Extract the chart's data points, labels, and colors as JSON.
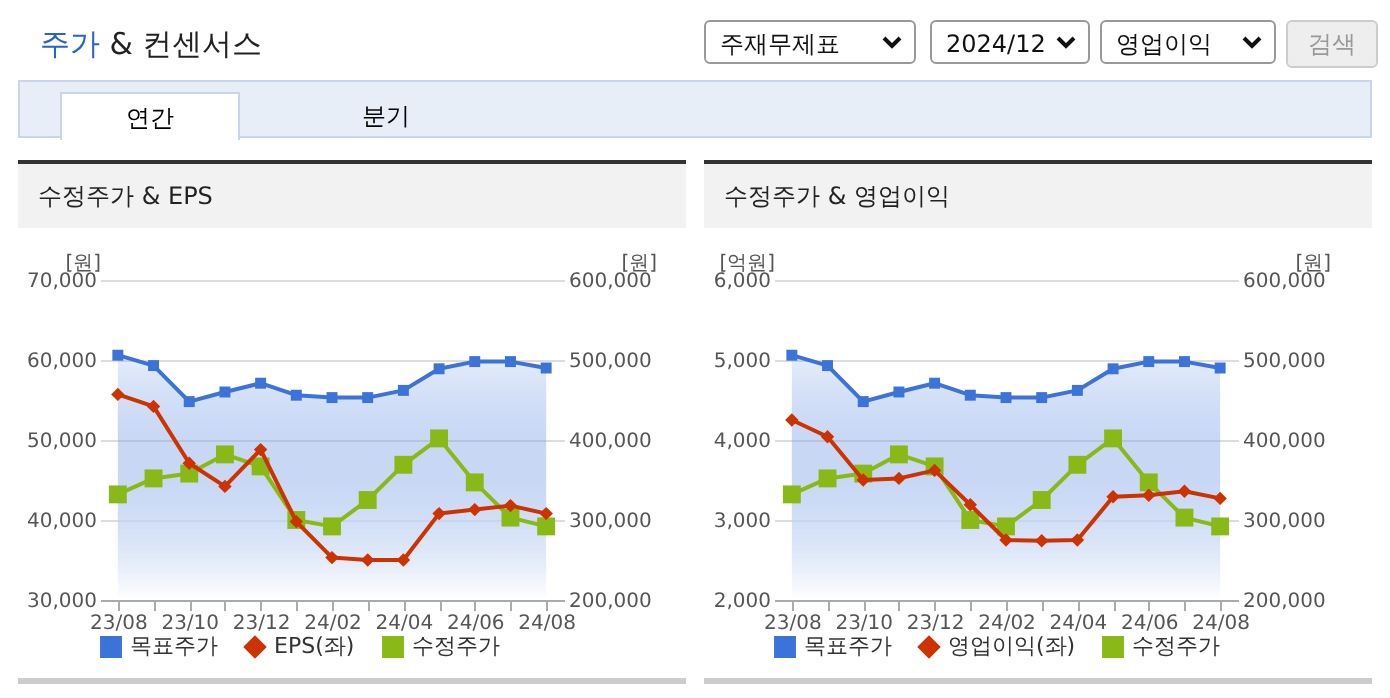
{
  "chart_data": [
    {
      "type": "other",
      "title": "주가 & 컨센서스",
      "annotations": [
        "주재무제표",
        "2024/12",
        "영업이익",
        "검색",
        "연간",
        "분기"
      ]
    },
    {
      "type": "line",
      "title": "수정주가 & EPS",
      "categories": [
        "23/08",
        null,
        "23/10",
        null,
        "23/12",
        null,
        "24/02",
        null,
        "24/04",
        null,
        "24/06",
        null,
        "24/08"
      ],
      "ylabel": "[원]",
      "y2label": "[원]",
      "ylim": [
        30000,
        70000
      ],
      "yticks": [
        {
          "value": 30000,
          "label": "30,000"
        },
        {
          "value": 40000,
          "label": "40,000"
        },
        {
          "value": 50000,
          "label": "50,000"
        },
        {
          "value": 60000,
          "label": "60,000"
        },
        {
          "value": 70000,
          "label": "70,000"
        }
      ],
      "y2lim": [
        200000,
        600000
      ],
      "y2ticks": [
        {
          "value": 200000,
          "label": "200,000"
        },
        {
          "value": 300000,
          "label": "300,000"
        },
        {
          "value": 400000,
          "label": "400,000"
        },
        {
          "value": 500000,
          "label": "500,000"
        },
        {
          "value": 600000,
          "label": "600,000"
        }
      ],
      "grid": "y",
      "legend": "bottom",
      "series": [
        {
          "name": "목표주가",
          "type": "area",
          "axis": "y2",
          "color": "#3b73d9",
          "values": [
            506000,
            493000,
            448000,
            460000,
            471000,
            456000,
            453000,
            453000,
            462000,
            489000,
            498000,
            498000,
            490000
          ]
        },
        {
          "name": "EPS(좌)",
          "type": "line",
          "color": "#cc3300",
          "marker": "diamond",
          "values": [
            55700,
            54200,
            47100,
            44200,
            48800,
            39800,
            35300,
            35000,
            35000,
            40800,
            41300,
            41800,
            40800
          ]
        },
        {
          "name": "수정주가",
          "type": "line",
          "axis": "y2",
          "color": "#88b917",
          "marker": "square",
          "values": [
            332000,
            352000,
            358000,
            382000,
            367000,
            300000,
            292000,
            325000,
            369000,
            402000,
            347000,
            303000,
            292000
          ]
        }
      ]
    },
    {
      "type": "line",
      "title": "수정주가 & 영업이익",
      "categories": [
        "23/08",
        null,
        "23/10",
        null,
        "23/12",
        null,
        "24/02",
        null,
        "24/04",
        null,
        "24/06",
        null,
        "24/08"
      ],
      "ylabel": "[억원]",
      "y2label": "[원]",
      "ylim": [
        2000,
        6000
      ],
      "yticks": [
        {
          "value": 2000,
          "label": "2,000"
        },
        {
          "value": 3000,
          "label": "3,000"
        },
        {
          "value": 4000,
          "label": "4,000"
        },
        {
          "value": 5000,
          "label": "5,000"
        },
        {
          "value": 6000,
          "label": "6,000"
        }
      ],
      "y2lim": [
        200000,
        600000
      ],
      "y2ticks": [
        {
          "value": 200000,
          "label": "200,000"
        },
        {
          "value": 300000,
          "label": "300,000"
        },
        {
          "value": 400000,
          "label": "400,000"
        },
        {
          "value": 500000,
          "label": "500,000"
        },
        {
          "value": 600000,
          "label": "600,000"
        }
      ],
      "grid": "y",
      "legend": "bottom",
      "series": [
        {
          "name": "목표주가",
          "type": "area",
          "axis": "y2",
          "color": "#3b73d9",
          "values": [
            506000,
            493000,
            448000,
            460000,
            471000,
            456000,
            453000,
            453000,
            462000,
            489000,
            498000,
            498000,
            490000
          ]
        },
        {
          "name": "영업이익(좌)",
          "type": "line",
          "color": "#cc3300",
          "marker": "diamond",
          "values": [
            4250,
            4040,
            3500,
            3520,
            3620,
            3190,
            2750,
            2740,
            2750,
            3290,
            3310,
            3360,
            3270
          ]
        },
        {
          "name": "수정주가",
          "type": "line",
          "axis": "y2",
          "color": "#88b917",
          "marker": "square",
          "values": [
            332000,
            352000,
            358000,
            382000,
            367000,
            300000,
            292000,
            325000,
            369000,
            402000,
            347000,
            303000,
            292000
          ]
        }
      ]
    }
  ]
}
